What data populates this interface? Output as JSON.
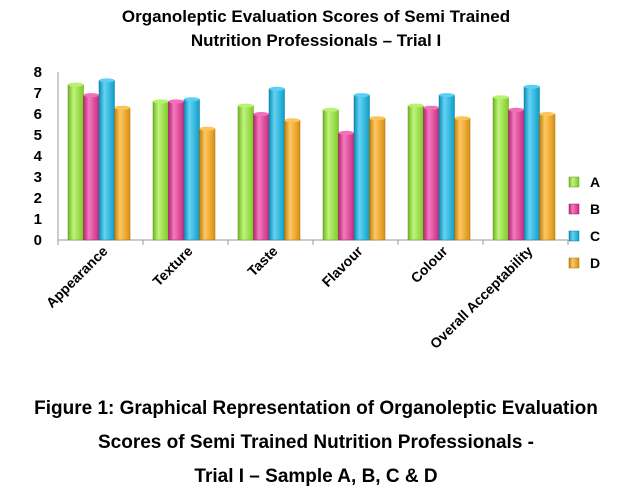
{
  "chart_data": {
    "type": "bar",
    "title_line1": "Organoleptic Evaluation Scores of Semi Trained",
    "title_line2": "Nutrition Professionals – Trial I",
    "categories": [
      "Appearance",
      "Texture",
      "Taste",
      "Flavour",
      "Colour",
      "Overall Acceptability"
    ],
    "series": [
      {
        "name": "A",
        "color": "#99ee33",
        "values": [
          7.4,
          6.6,
          6.4,
          6.2,
          6.4,
          6.8
        ]
      },
      {
        "name": "B",
        "color": "#ee3399",
        "values": [
          6.9,
          6.6,
          6.0,
          5.1,
          6.3,
          6.2
        ]
      },
      {
        "name": "C",
        "color": "#11bbee",
        "values": [
          7.6,
          6.7,
          7.2,
          6.9,
          6.9,
          7.3
        ]
      },
      {
        "name": "D",
        "color": "#ffaa11",
        "values": [
          6.3,
          5.3,
          5.7,
          5.8,
          5.8,
          6.0
        ]
      }
    ],
    "yticks": [
      0,
      1,
      2,
      3,
      4,
      5,
      6,
      7,
      8
    ],
    "ylim": [
      0,
      8
    ],
    "legend_position": "right"
  },
  "caption": {
    "line1": "Figure 1: Graphical Representation of Organoleptic Evaluation",
    "line2": "Scores of Semi Trained Nutrition Professionals -",
    "line3": "Trial I – Sample A, B, C & D"
  }
}
